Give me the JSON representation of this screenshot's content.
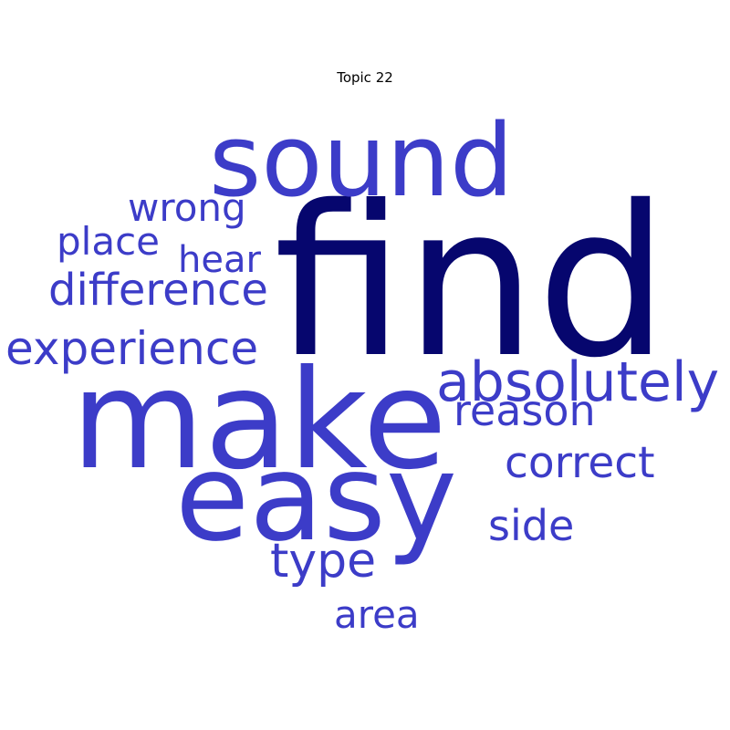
{
  "title": "Topic 22",
  "colors": {
    "primary_word": "#06066e",
    "word": "#3c3cc8",
    "background": "#ffffff"
  },
  "words": [
    {
      "text": "find",
      "weight": 1.0,
      "color": "primary_word"
    },
    {
      "text": "make",
      "weight": 0.82,
      "color": "word"
    },
    {
      "text": "easy",
      "weight": 0.74,
      "color": "word"
    },
    {
      "text": "sound",
      "weight": 0.6,
      "color": "word"
    },
    {
      "text": "absolutely",
      "weight": 0.38,
      "color": "word"
    },
    {
      "text": "experience",
      "weight": 0.32,
      "color": "word"
    },
    {
      "text": "difference",
      "weight": 0.3,
      "color": "word"
    },
    {
      "text": "type",
      "weight": 0.3,
      "color": "word"
    },
    {
      "text": "reason",
      "weight": 0.29,
      "color": "word"
    },
    {
      "text": "correct",
      "weight": 0.29,
      "color": "word"
    },
    {
      "text": "side",
      "weight": 0.28,
      "color": "word"
    },
    {
      "text": "area",
      "weight": 0.27,
      "color": "word"
    },
    {
      "text": "wrong",
      "weight": 0.26,
      "color": "word"
    },
    {
      "text": "place",
      "weight": 0.25,
      "color": "word"
    },
    {
      "text": "hear",
      "weight": 0.24,
      "color": "word"
    }
  ]
}
